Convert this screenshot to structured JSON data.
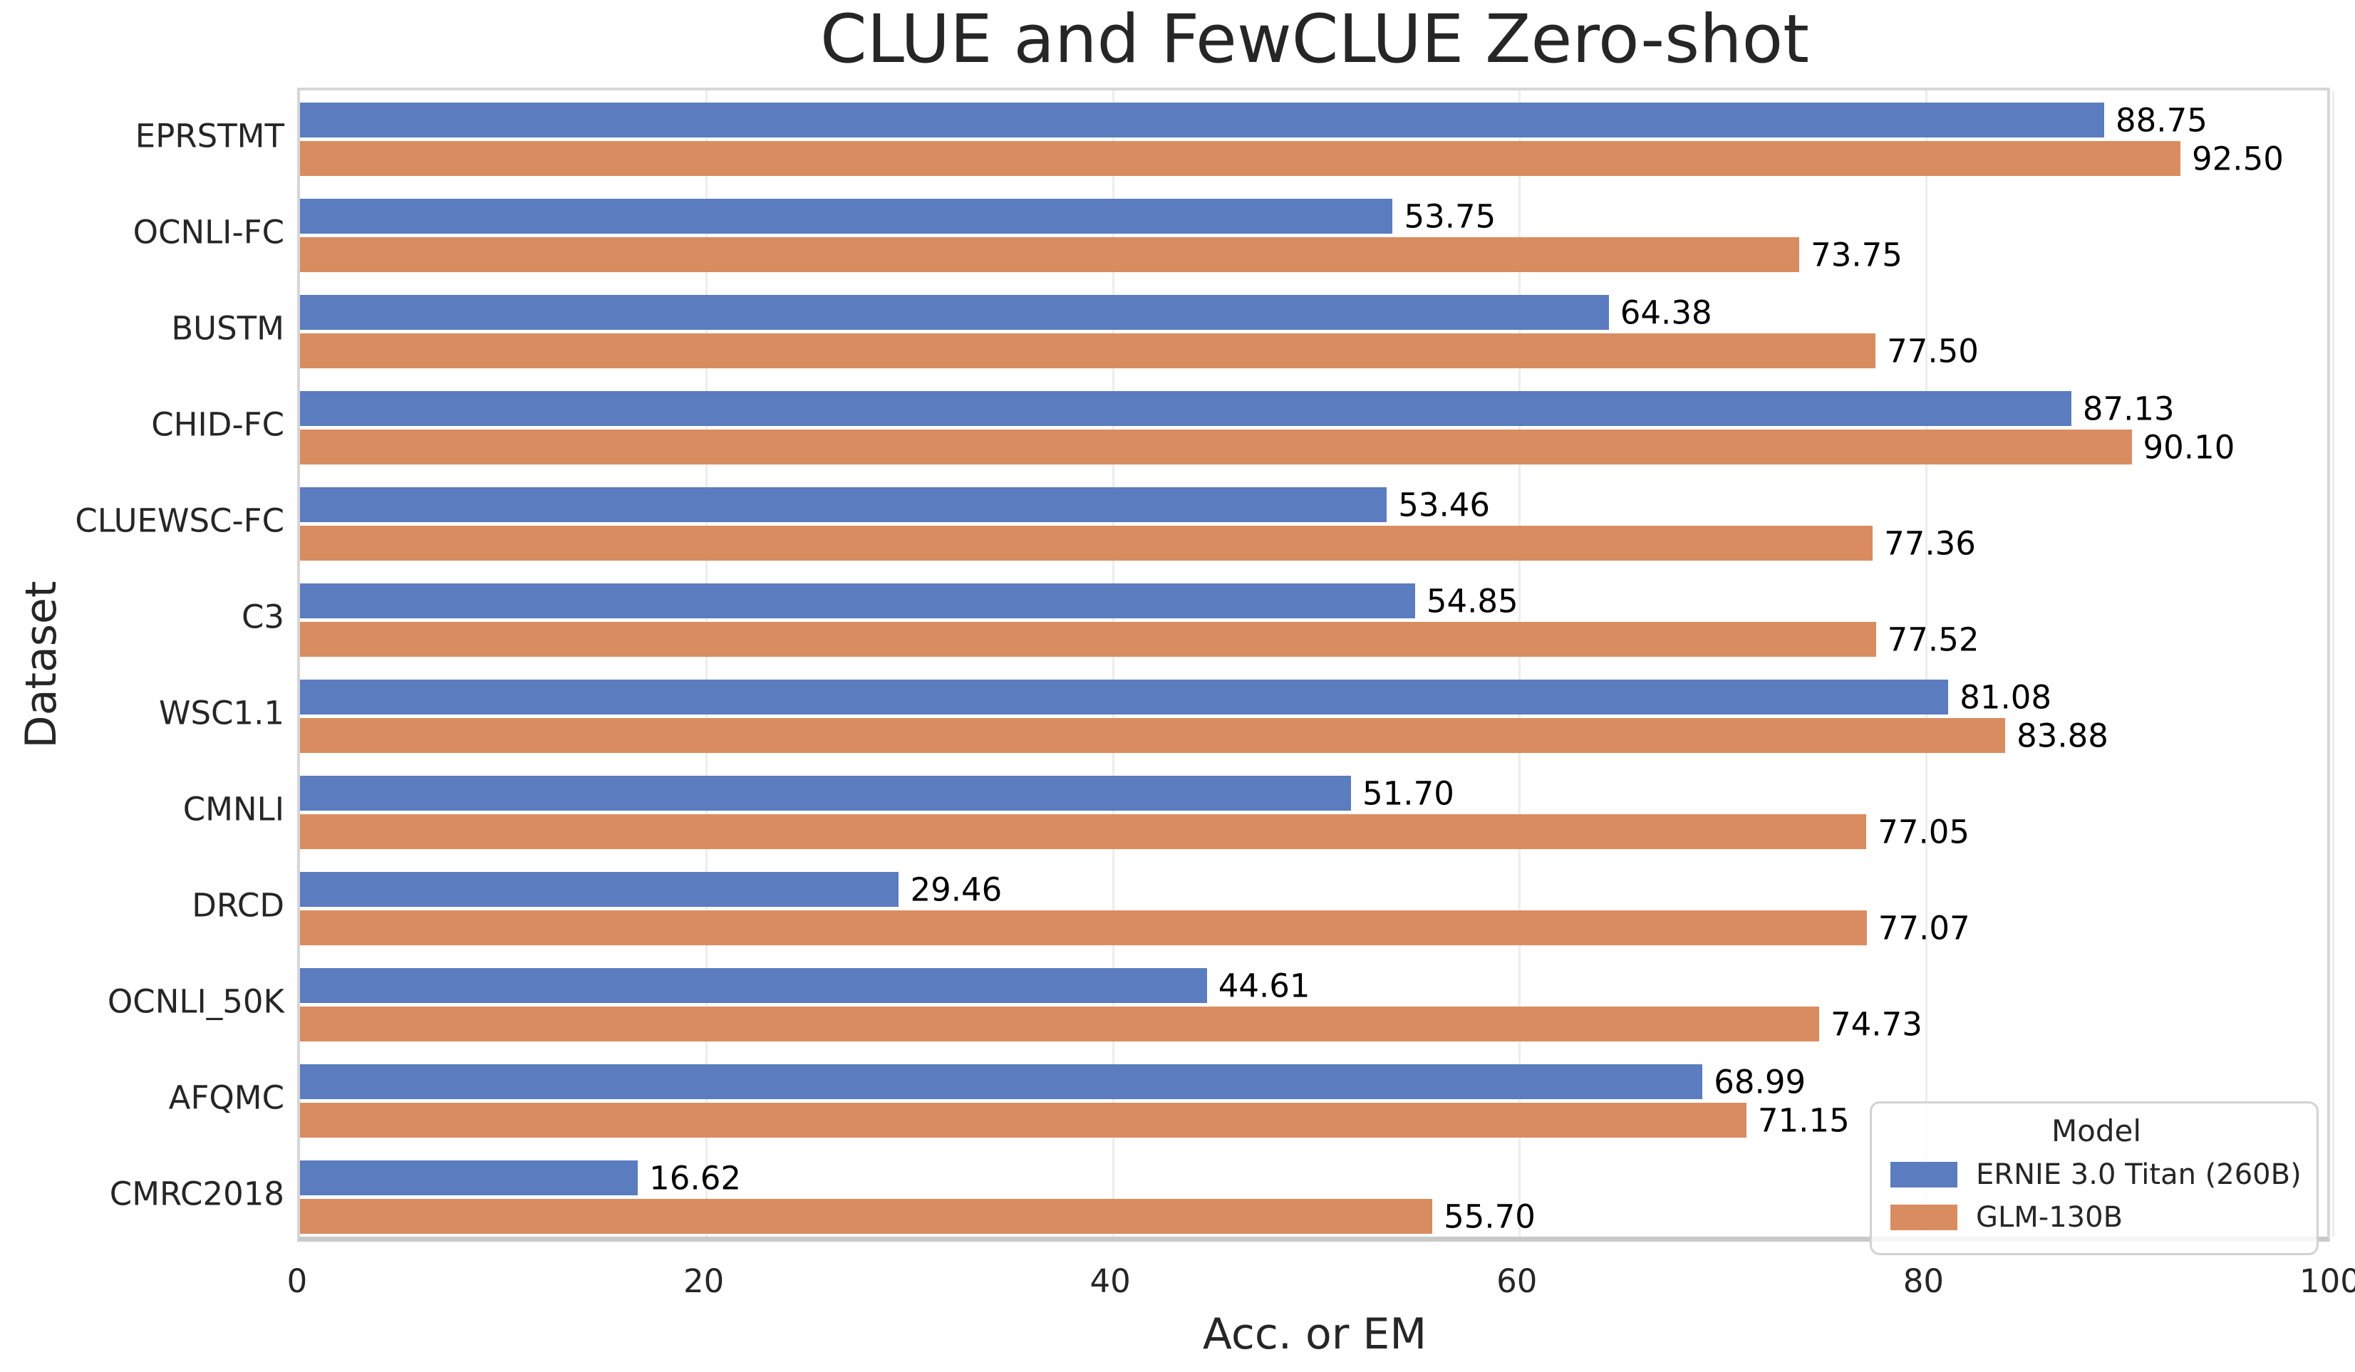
{
  "chart_data": {
    "type": "bar",
    "orientation": "horizontal",
    "title": "CLUE and FewCLUE Zero-shot",
    "xlabel": "Acc. or EM",
    "ylabel": "Dataset",
    "xlim": [
      0,
      100
    ],
    "xticks": [
      0,
      20,
      40,
      60,
      80,
      100
    ],
    "grid": "vertical-light",
    "categories": [
      "EPRSTMT",
      "OCNLI-FC",
      "BUSTM",
      "CHID-FC",
      "CLUEWSC-FC",
      "C3",
      "WSC1.1",
      "CMNLI",
      "DRCD",
      "OCNLI_50K",
      "AFQMC",
      "CMRC2018"
    ],
    "series": [
      {
        "name": "ERNIE 3.0 Titan (260B)",
        "color": "#5b7cbf",
        "values": [
          88.75,
          53.75,
          64.38,
          87.13,
          53.46,
          54.85,
          81.08,
          51.7,
          29.46,
          44.61,
          68.99,
          16.62
        ]
      },
      {
        "name": "GLM-130B",
        "color": "#d98c60",
        "values": [
          92.5,
          73.75,
          77.5,
          90.1,
          77.36,
          77.52,
          83.88,
          77.05,
          77.07,
          74.73,
          71.15,
          55.7
        ]
      }
    ],
    "legend": {
      "title": "Model",
      "position": "lower right"
    }
  }
}
